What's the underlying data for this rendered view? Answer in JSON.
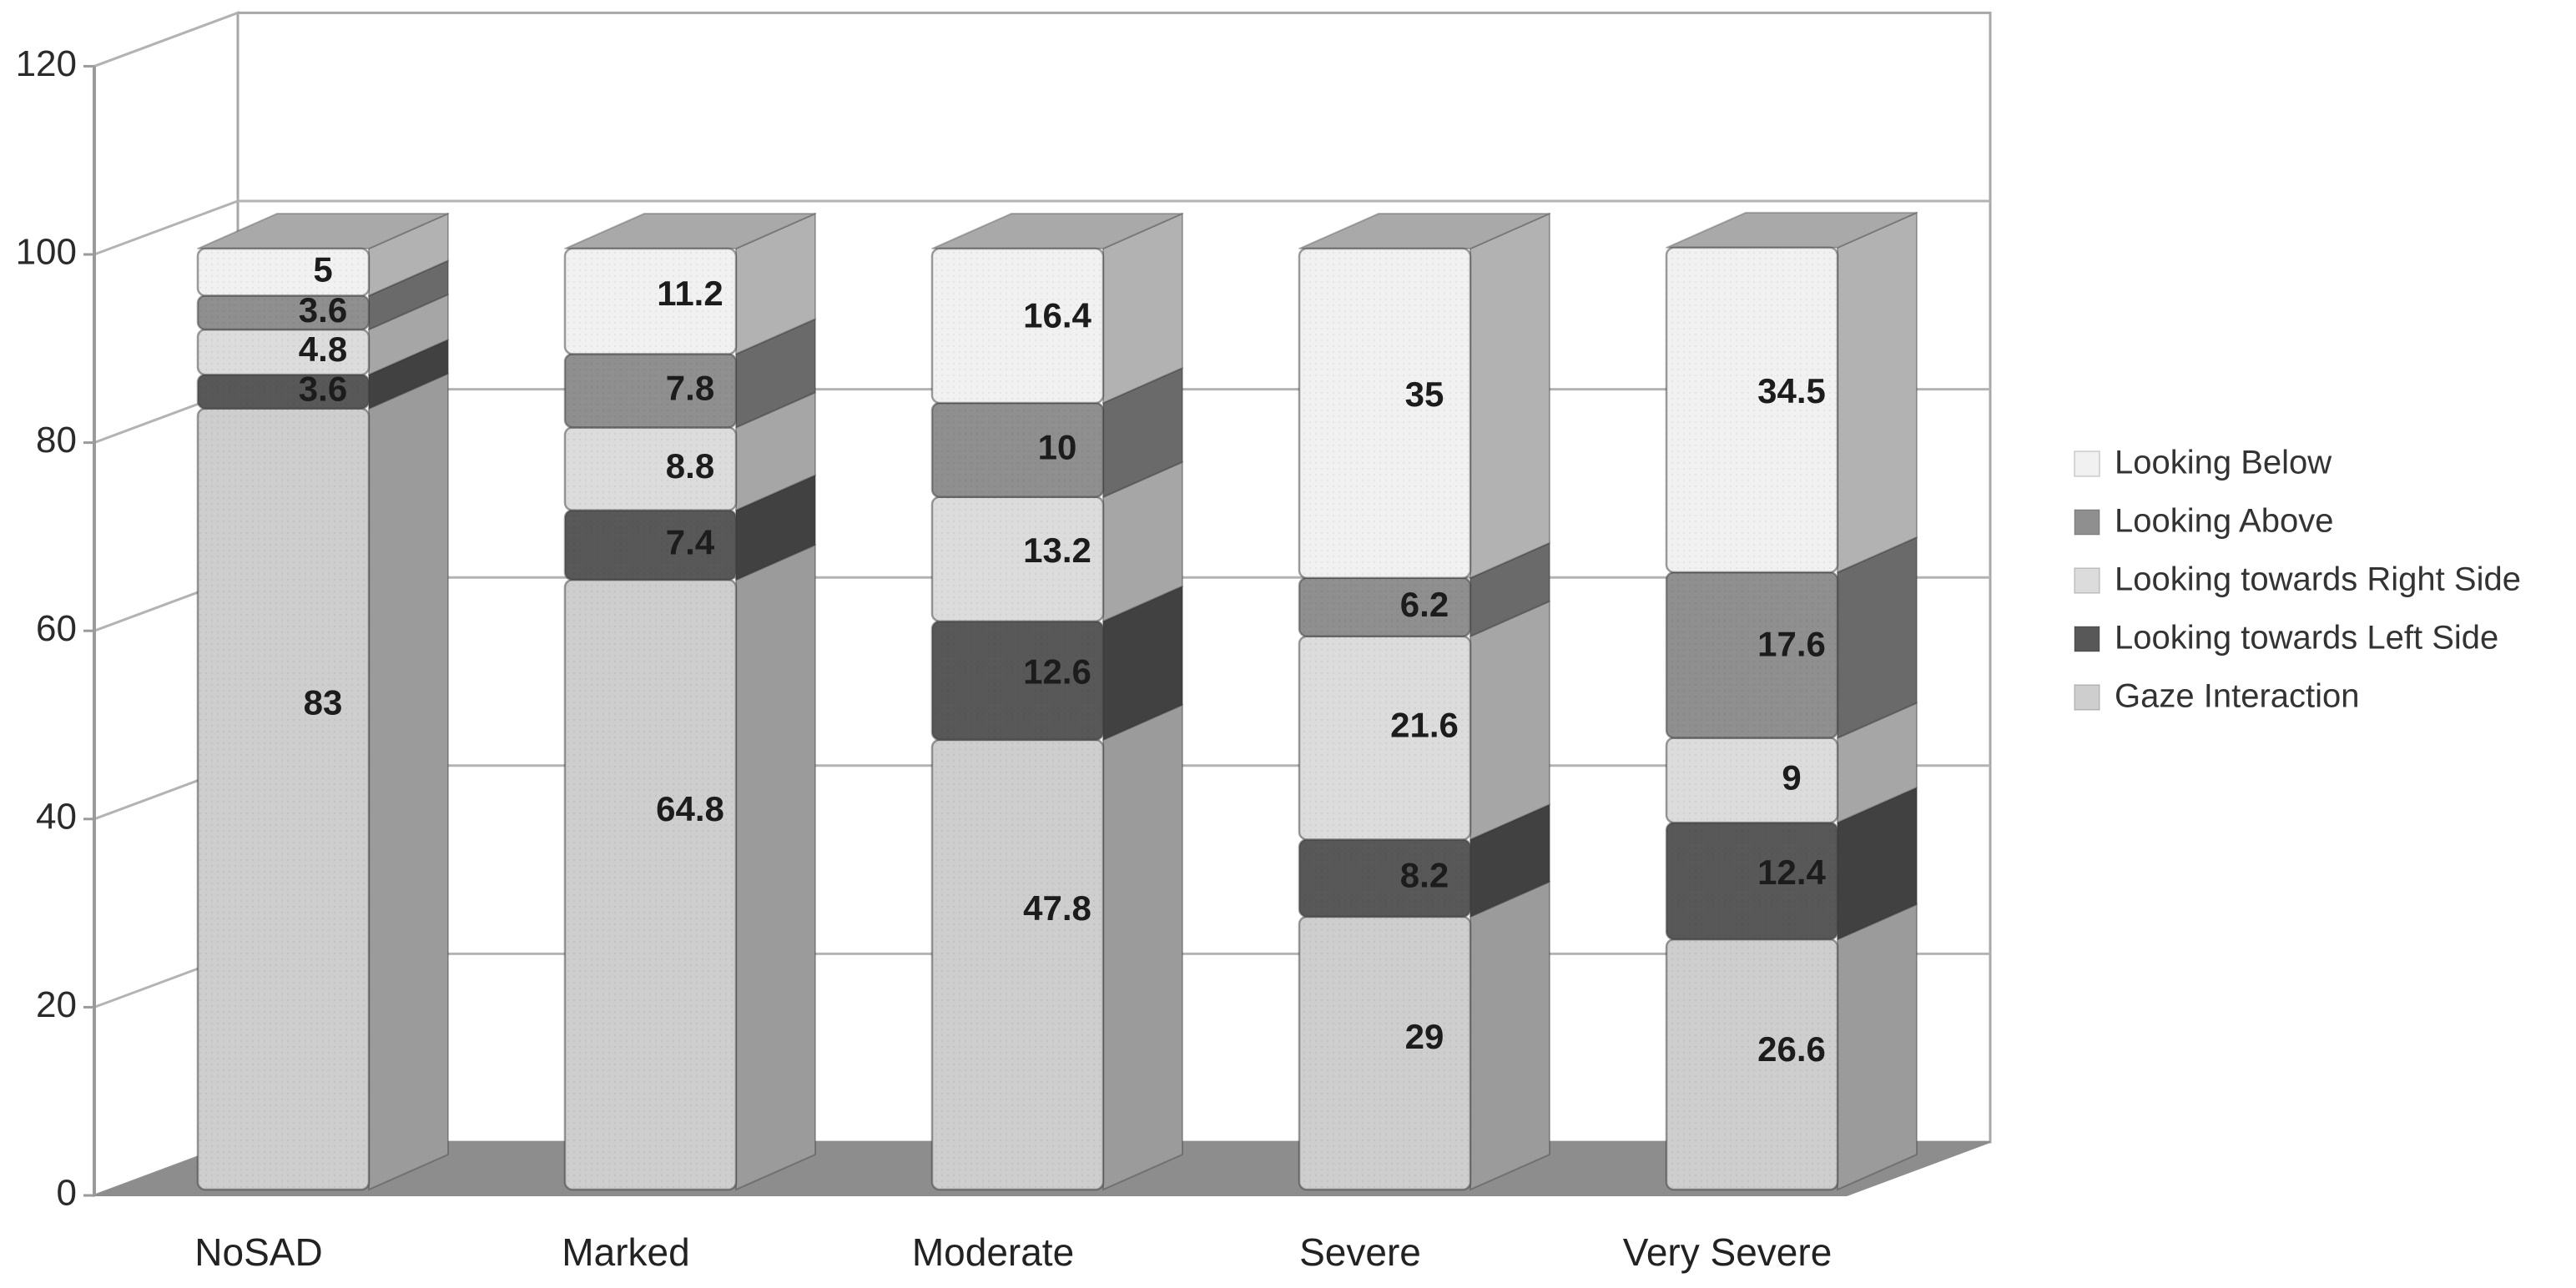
{
  "chart_data": {
    "type": "bar",
    "variant": "3d-stacked-column",
    "title": "",
    "categories": [
      "NoSAD",
      "Marked",
      "Moderate",
      "Severe",
      "Very Severe"
    ],
    "series": [
      {
        "name": "Gaze Interaction",
        "values": [
          83,
          64.8,
          47.8,
          29,
          26.6
        ],
        "front_color": "#cecece",
        "side_color": "#9b9b9b"
      },
      {
        "name": "Looking towards Left Side",
        "values": [
          3.6,
          7.4,
          12.6,
          8.2,
          12.4
        ],
        "front_color": "#585858",
        "side_color": "#414141"
      },
      {
        "name": "Looking towards Right Side",
        "values": [
          4.8,
          8.8,
          13.2,
          21.6,
          9
        ],
        "front_color": "#dcdcdc",
        "side_color": "#a6a6a6"
      },
      {
        "name": "Looking Above",
        "values": [
          3.6,
          7.8,
          10,
          6.2,
          17.6
        ],
        "front_color": "#8f8f8f",
        "side_color": "#6a6a6a"
      },
      {
        "name": "Looking Below",
        "values": [
          5,
          11.2,
          16.4,
          35,
          34.5
        ],
        "front_color": "#f1f1f1",
        "side_color": "#b2b2b2"
      }
    ],
    "value_labels": [
      [
        "83",
        "3.6",
        "4.8",
        "3.6",
        "5"
      ],
      [
        "64.8",
        "7.4",
        "8.8",
        "7.8",
        "11.2"
      ],
      [
        "47.8",
        "12.6",
        "13.2",
        "10",
        "16.4"
      ],
      [
        "29",
        "8.2",
        "21.6",
        "6.2",
        "35"
      ],
      [
        "26.6",
        "12.4",
        "9",
        "17.6",
        "34.5"
      ]
    ],
    "y_axis": {
      "min": 0,
      "max": 120,
      "step": 20,
      "tick_labels": [
        "0",
        "20",
        "40",
        "60",
        "80",
        "100",
        "120"
      ]
    },
    "legend": {
      "position": "right",
      "entries_top_to_bottom": [
        "Looking Below",
        "Looking Above",
        "Looking towards Right Side",
        "Looking towards Left Side",
        "Gaze Interaction"
      ]
    },
    "grid": true,
    "colors": {
      "background": "#ffffff",
      "wall_fill": "#ffffff",
      "wall_stroke": "#a8a8a8",
      "gridline": "#b3b3b3",
      "floor": "#8d8d8d",
      "bar_top_face": "#a9a9a9",
      "axis": "#9a9a9a",
      "value_label": "#1c1c1c",
      "tick_label": "#2a2a2a",
      "category_label": "#222222",
      "legend_text": "#333333"
    }
  }
}
